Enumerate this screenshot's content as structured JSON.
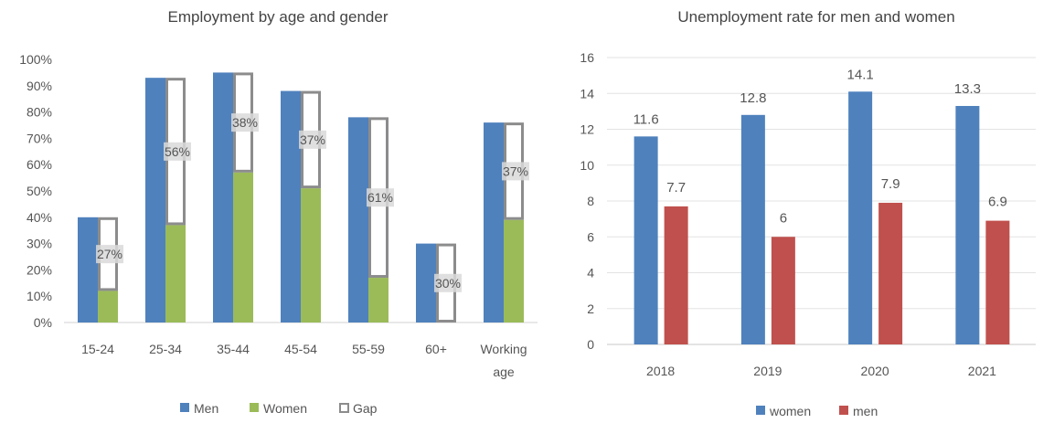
{
  "chart_data": [
    {
      "type": "bar",
      "title": "Employment by age and gender",
      "categories": [
        "15-24",
        "25-34",
        "35-44",
        "45-54",
        "55-59",
        "60+",
        "Working age"
      ],
      "series": [
        {
          "name": "Men",
          "values": [
            40,
            93,
            95,
            88,
            78,
            30,
            76
          ],
          "color": "#4F81BD"
        },
        {
          "name": "Women",
          "values": [
            12,
            37,
            57,
            51,
            17,
            0,
            39
          ],
          "color": "#9BBB59"
        },
        {
          "name": "Gap",
          "values": [
            27,
            56,
            38,
            37,
            61,
            30,
            37
          ],
          "color": "#FFFFFF"
        }
      ],
      "gap_labels": [
        "27%",
        "56%",
        "38%",
        "37%",
        "61%",
        "30%",
        "37%"
      ],
      "y_ticks": [
        "0%",
        "10%",
        "20%",
        "30%",
        "40%",
        "50%",
        "60%",
        "70%",
        "80%",
        "90%",
        "100%"
      ],
      "ylim": [
        0,
        100
      ],
      "grid": false,
      "legend": "bottom"
    },
    {
      "type": "bar",
      "title": "Unemployment rate for men and women",
      "categories": [
        "2018",
        "2019",
        "2020",
        "2021"
      ],
      "series": [
        {
          "name": "women",
          "values": [
            11.6,
            12.8,
            14.1,
            13.3
          ],
          "labels": [
            "11.6",
            "12.8",
            "14.1",
            "13.3"
          ],
          "color": "#4F81BD"
        },
        {
          "name": "men",
          "values": [
            7.7,
            6,
            7.9,
            6.9
          ],
          "labels": [
            "7.7",
            "6",
            "7.9",
            "6.9"
          ],
          "color": "#C0504D"
        }
      ],
      "y_ticks": [
        "0",
        "2",
        "4",
        "6",
        "8",
        "10",
        "12",
        "14",
        "16"
      ],
      "ylim": [
        0,
        16
      ],
      "grid": true,
      "legend": "bottom"
    }
  ]
}
